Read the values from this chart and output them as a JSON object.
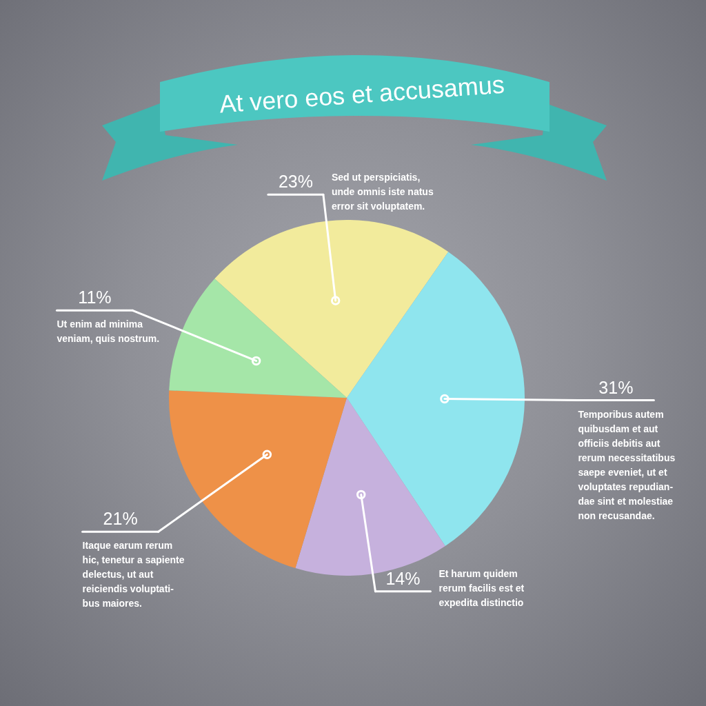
{
  "chart_data": {
    "type": "pie",
    "title": "At vero eos et accusamus",
    "categories": [
      "Sed ut perspiciatis,\nunde omnis iste natus\nerror sit voluptatem.",
      "Temporibus autem\nquibusdam et aut\nofficiis debitis aut\nrerum necessitatibus\nsaepe eveniet, ut et\nvoluptates repudian-\ndae sint et molestiae\nnon recusandae.",
      "Et harum quidem\nrerum facilis est et\nexpedita distinctio",
      "Itaque earum rerum\nhic, tenetur a sapiente\ndelectus, ut aut\nreiciendis voluptati-\nbus maiores.",
      "Ut enim ad minima\nveniam, quis nostrum."
    ],
    "values": [
      23,
      31,
      14,
      21,
      11
    ],
    "colors": [
      "#f2eb9c",
      "#8fe5ee",
      "#c6b1dd",
      "#ee9148",
      "#a5e6a8"
    ],
    "value_labels": [
      "23%",
      "31%",
      "14%",
      "21%",
      "11%"
    ]
  }
}
